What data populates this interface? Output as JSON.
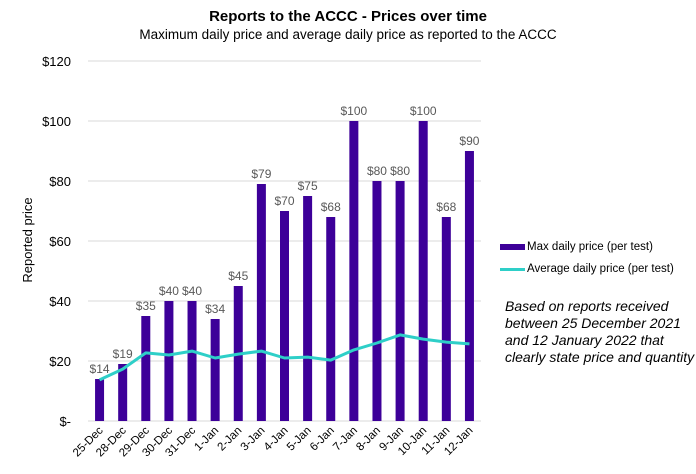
{
  "chart_data": {
    "type": "bar",
    "title": "Reports to the ACCC - Prices over time",
    "subtitle": "Maximum daily price and average daily price as reported to the ACCC",
    "xlabel": "",
    "ylabel": "Reported price",
    "ylim": [
      0,
      120
    ],
    "yticks": [
      0,
      20,
      40,
      60,
      80,
      100,
      120
    ],
    "ytick_labels": [
      "$-",
      "$20",
      "$40",
      "$60",
      "$80",
      "$100",
      "$120"
    ],
    "grid": true,
    "legend_position": "right",
    "categories": [
      "25-Dec",
      "28-Dec",
      "29-Dec",
      "30-Dec",
      "31-Dec",
      "1-Jan",
      "2-Jan",
      "3-Jan",
      "4-Jan",
      "5-Jan",
      "6-Jan",
      "7-Jan",
      "8-Jan",
      "9-Jan",
      "10-Jan",
      "11-Jan",
      "12-Jan"
    ],
    "series": [
      {
        "name": "Max daily price (per test)",
        "type": "bar",
        "color": "#3D0099",
        "values": [
          14,
          19,
          35,
          40,
          40,
          34,
          45,
          79,
          70,
          75,
          68,
          100,
          80,
          80,
          100,
          68,
          90
        ],
        "data_labels": [
          "$14",
          "$19",
          "$35",
          "$40",
          "$40",
          "$34",
          "$45",
          "$79",
          "$70",
          "$75",
          "$68",
          "$100",
          "$80",
          "$80",
          "$100",
          "$68",
          "$90"
        ]
      },
      {
        "name": "Average daily price (per test)",
        "type": "line",
        "color": "#2ECFC8",
        "values": [
          13.7,
          17.3,
          22.7,
          22,
          23.3,
          21,
          22.3,
          23.3,
          21,
          21.3,
          20.3,
          23.7,
          26,
          28.7,
          27.3,
          26.3,
          25.7
        ]
      }
    ],
    "annotation": "Based on reports received between 25 December 2021 and 12 January 2022 that clearly state price and quantity"
  }
}
